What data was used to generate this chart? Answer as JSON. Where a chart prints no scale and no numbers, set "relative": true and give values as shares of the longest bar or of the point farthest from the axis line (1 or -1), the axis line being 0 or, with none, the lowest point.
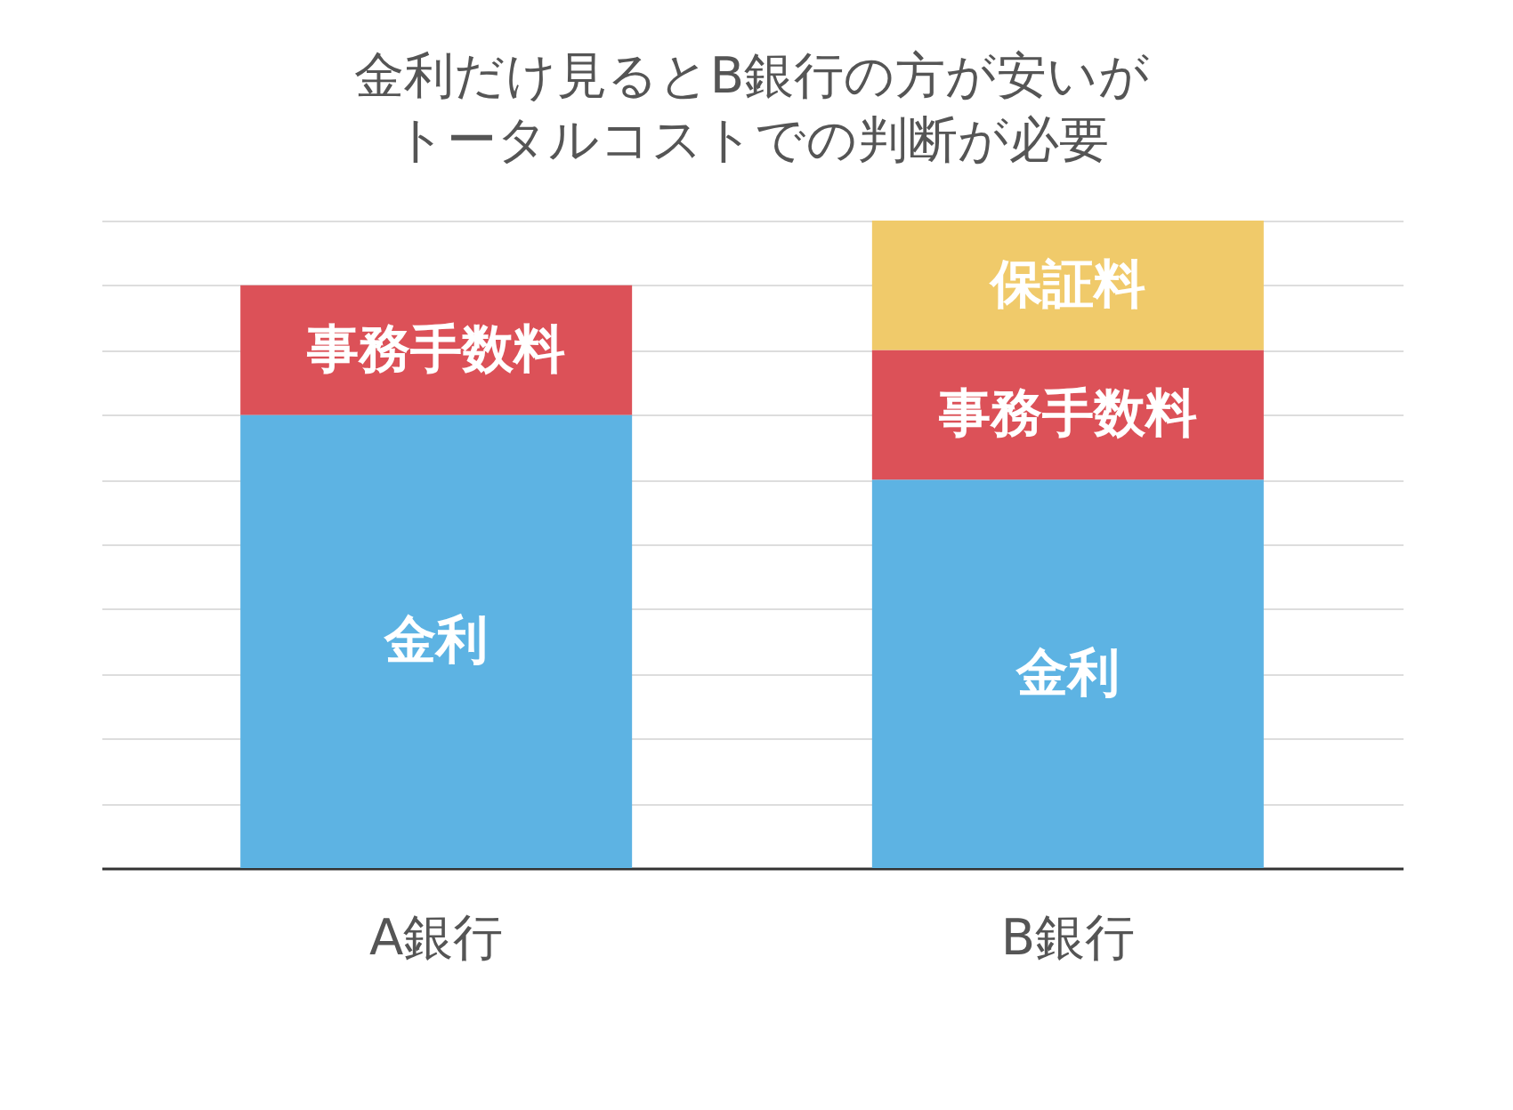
{
  "chart_data": {
    "type": "bar",
    "title": "金利だけ見るとB銀行の方が安いが",
    "subtitle": "トータルコストでの判断が必要",
    "categories": [
      "A銀行",
      "B銀行"
    ],
    "stacked": true,
    "relative": true,
    "grid": true,
    "series": [
      {
        "name": "金利",
        "color": "#5db3e3",
        "values": [
          0.7,
          0.6
        ]
      },
      {
        "name": "事務手数料",
        "color": "#dc5158",
        "values": [
          0.2,
          0.2
        ]
      },
      {
        "name": "保証料",
        "color": "#f0ca6a",
        "values": [
          null,
          0.2
        ]
      }
    ]
  }
}
